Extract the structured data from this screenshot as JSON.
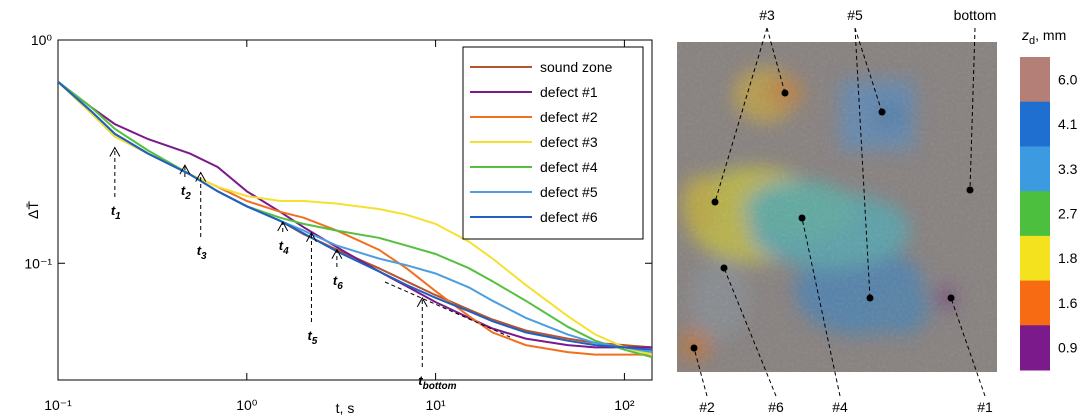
{
  "chart_data": [
    {
      "type": "line",
      "xlabel": "t, s",
      "ylabel": "ΔT̄",
      "log_x": true,
      "log_y": true,
      "xlim": [
        0.1,
        140
      ],
      "ylim": [
        0.03,
        1
      ],
      "xticks": [
        {
          "value": 0.1,
          "label": "10⁻¹"
        },
        {
          "value": 1,
          "label": "10⁰"
        },
        {
          "value": 10,
          "label": "10¹"
        },
        {
          "value": 100,
          "label": "10²"
        }
      ],
      "yticks": [
        {
          "value": 0.1,
          "label": "10⁻¹"
        },
        {
          "value": 1,
          "label": "10⁰"
        }
      ],
      "legend": "upper right",
      "x": [
        0.1,
        0.15,
        0.2,
        0.3,
        0.5,
        0.7,
        1,
        1.5,
        2,
        3,
        5,
        7,
        10,
        15,
        20,
        30,
        50,
        70,
        100,
        140
      ],
      "series": [
        {
          "name": "sound zone",
          "color": "#b5552f",
          "values": [
            0.65,
            0.48,
            0.38,
            0.31,
            0.25,
            0.21,
            0.18,
            0.155,
            0.135,
            0.115,
            0.095,
            0.083,
            0.072,
            0.062,
            0.056,
            0.05,
            0.046,
            0.044,
            0.043,
            0.042
          ]
        },
        {
          "name": "defect #1",
          "color": "#7b1a8a",
          "values": [
            0.65,
            0.5,
            0.42,
            0.36,
            0.31,
            0.27,
            0.21,
            0.17,
            0.145,
            0.118,
            0.092,
            0.079,
            0.067,
            0.057,
            0.051,
            0.046,
            0.043,
            0.042,
            0.042,
            0.042
          ]
        },
        {
          "name": "defect #2",
          "color": "#f07020",
          "values": [
            0.65,
            0.47,
            0.37,
            0.31,
            0.25,
            0.22,
            0.19,
            0.17,
            0.16,
            0.14,
            0.115,
            0.095,
            0.075,
            0.058,
            0.049,
            0.043,
            0.04,
            0.039,
            0.039,
            0.039
          ]
        },
        {
          "name": "defect #3",
          "color": "#f5e030",
          "values": [
            0.65,
            0.47,
            0.37,
            0.31,
            0.25,
            0.22,
            0.2,
            0.19,
            0.19,
            0.185,
            0.175,
            0.165,
            0.15,
            0.125,
            0.105,
            0.08,
            0.058,
            0.048,
            0.042,
            0.039
          ]
        },
        {
          "name": "defect #4",
          "color": "#55c040",
          "values": [
            0.65,
            0.5,
            0.4,
            0.32,
            0.25,
            0.21,
            0.18,
            0.16,
            0.15,
            0.14,
            0.13,
            0.12,
            0.11,
            0.095,
            0.083,
            0.068,
            0.052,
            0.045,
            0.041,
            0.038
          ]
        },
        {
          "name": "defect #5",
          "color": "#4d9de0",
          "values": [
            0.65,
            0.48,
            0.38,
            0.31,
            0.25,
            0.21,
            0.18,
            0.155,
            0.14,
            0.12,
            0.105,
            0.098,
            0.09,
            0.078,
            0.068,
            0.057,
            0.048,
            0.044,
            0.042,
            0.04
          ]
        },
        {
          "name": "defect #6",
          "color": "#1f60c0",
          "values": [
            0.65,
            0.48,
            0.38,
            0.31,
            0.25,
            0.21,
            0.18,
            0.155,
            0.136,
            0.113,
            0.092,
            0.08,
            0.07,
            0.061,
            0.055,
            0.049,
            0.045,
            0.043,
            0.042,
            0.041
          ]
        }
      ],
      "annotations": [
        {
          "label": "t",
          "sub": "1",
          "x": 0.2,
          "y": 0.33
        },
        {
          "label": "t",
          "sub": "2",
          "x": 0.47,
          "y": 0.275
        },
        {
          "label": "t",
          "sub": "3",
          "x": 0.57,
          "y": 0.255
        },
        {
          "label": "t",
          "sub": "4",
          "x": 1.55,
          "y": 0.153
        },
        {
          "label": "t",
          "sub": "5",
          "x": 2.2,
          "y": 0.137
        },
        {
          "label": "t",
          "sub": "6",
          "x": 3.0,
          "y": 0.115
        },
        {
          "label": "t",
          "sub": "bottom",
          "x": 8.5,
          "y": 0.07
        }
      ]
    },
    {
      "type": "image",
      "labels": [
        "#3",
        "#5",
        "bottom",
        "#2",
        "#6",
        "#4",
        "#1"
      ],
      "colorbar": {
        "title": "z",
        "title_sub": "d",
        "title_rest": ", mm",
        "ticks": [
          {
            "value": 6.0,
            "label": "6.0"
          },
          4.1,
          3.3,
          2.7,
          1.8,
          1.6,
          0.9
        ],
        "colors": [
          "#b47f76",
          "#1f6fd0",
          "#3c9be0",
          "#4dbf3f",
          "#f4e21f",
          "#f76b12",
          "#7b1a8a"
        ]
      }
    }
  ]
}
